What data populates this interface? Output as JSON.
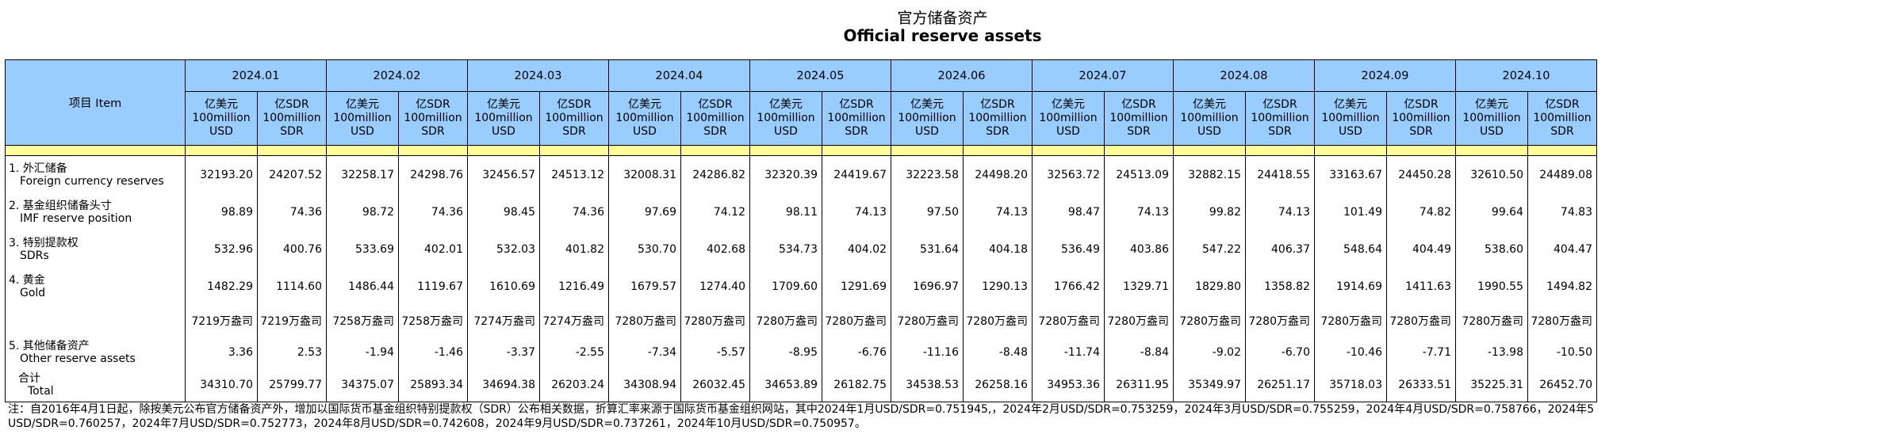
{
  "title_cn": "官方储备资产",
  "title_en": "Official reserve assets",
  "item_header": "项目 Item",
  "unit_usd": [
    "亿美元",
    "100million",
    "USD"
  ],
  "unit_sdr": [
    "亿SDR",
    "100million",
    "SDR"
  ],
  "months": [
    "2024.01",
    "2024.02",
    "2024.03",
    "2024.04",
    "2024.05",
    "2024.06",
    "2024.07",
    "2024.08",
    "2024.09",
    "2024.10"
  ],
  "rows": [
    {
      "cn": "1. 外汇储备",
      "en": "Foreign currency reserves",
      "values": [
        "32193.20",
        "24207.52",
        "32258.17",
        "24298.76",
        "32456.57",
        "24513.12",
        "32008.31",
        "24286.82",
        "32320.39",
        "24419.67",
        "32223.58",
        "24498.20",
        "32563.72",
        "24513.09",
        "32882.15",
        "24418.55",
        "33163.67",
        "24450.28",
        "32610.50",
        "24489.08"
      ]
    },
    {
      "cn": "2. 基金组织储备头寸",
      "en": "IMF reserve position",
      "values": [
        "98.89",
        "74.36",
        "98.72",
        "74.36",
        "98.45",
        "74.36",
        "97.69",
        "74.12",
        "98.11",
        "74.13",
        "97.50",
        "74.13",
        "98.47",
        "74.13",
        "99.82",
        "74.13",
        "101.49",
        "74.82",
        "99.64",
        "74.83"
      ]
    },
    {
      "cn": "3. 特别提款权",
      "en": "SDRs",
      "values": [
        "532.96",
        "400.76",
        "533.69",
        "402.01",
        "532.03",
        "401.82",
        "530.70",
        "402.68",
        "534.73",
        "404.02",
        "531.64",
        "404.18",
        "536.49",
        "403.86",
        "547.22",
        "406.37",
        "548.64",
        "404.49",
        "538.60",
        "404.47"
      ]
    },
    {
      "cn": "4. 黄金",
      "en": "Gold",
      "values": [
        "1482.29",
        "1114.60",
        "1486.44",
        "1119.67",
        "1610.69",
        "1216.49",
        "1679.57",
        "1274.40",
        "1709.60",
        "1291.69",
        "1696.97",
        "1290.13",
        "1766.42",
        "1329.71",
        "1829.80",
        "1358.82",
        "1914.69",
        "1411.63",
        "1990.55",
        "1494.82"
      ]
    },
    {
      "cn": "",
      "en": "",
      "values": [
        "7219万盎司",
        "7219万盎司",
        "7258万盎司",
        "7258万盎司",
        "7274万盎司",
        "7274万盎司",
        "7280万盎司",
        "7280万盎司",
        "7280万盎司",
        "7280万盎司",
        "7280万盎司",
        "7280万盎司",
        "7280万盎司",
        "7280万盎司",
        "7280万盎司",
        "7280万盎司",
        "7280万盎司",
        "7280万盎司",
        "7280万盎司",
        "7280万盎司"
      ]
    },
    {
      "cn": "5. 其他储备资产",
      "en": "Other reserve assets",
      "values": [
        "3.36",
        "2.53",
        "-1.94",
        "-1.46",
        "-3.37",
        "-2.55",
        "-7.34",
        "-5.57",
        "-8.95",
        "-6.76",
        "-11.16",
        "-8.48",
        "-11.74",
        "-8.84",
        "-9.02",
        "-6.70",
        "-10.46",
        "-7.71",
        "-13.98",
        "-10.50"
      ]
    },
    {
      "cn": "合计",
      "en": "Total",
      "values": [
        "34310.70",
        "25799.77",
        "34375.07",
        "25893.34",
        "34694.38",
        "26203.24",
        "34308.94",
        "26032.45",
        "34653.89",
        "26182.75",
        "34538.53",
        "26258.16",
        "34953.36",
        "26311.95",
        "35349.97",
        "26251.17",
        "35718.03",
        "26333.51",
        "35225.31",
        "26452.70"
      ]
    }
  ],
  "note_line1": "注：自2016年4月1日起，除按美元公布官方储备资产外，增加以国际货币基金组织特别提款权（SDR）公布相关数据，折算汇率来源于国际货币基金组织网站，其中2024年1月USD/SDR=0.751945,，2024年2月USD/SDR=0.753259，2024年3月USD/SDR=0.755259，2024年4月USD/SDR=0.758766，2024年5",
  "note_line2": "USD/SDR=0.760257，2024年7月USD/SDR=0.752773，2024年8月USD/SDR=0.742608，2024年9月USD/SDR=0.737261，2024年10月USD/SDR=0.750957。"
}
